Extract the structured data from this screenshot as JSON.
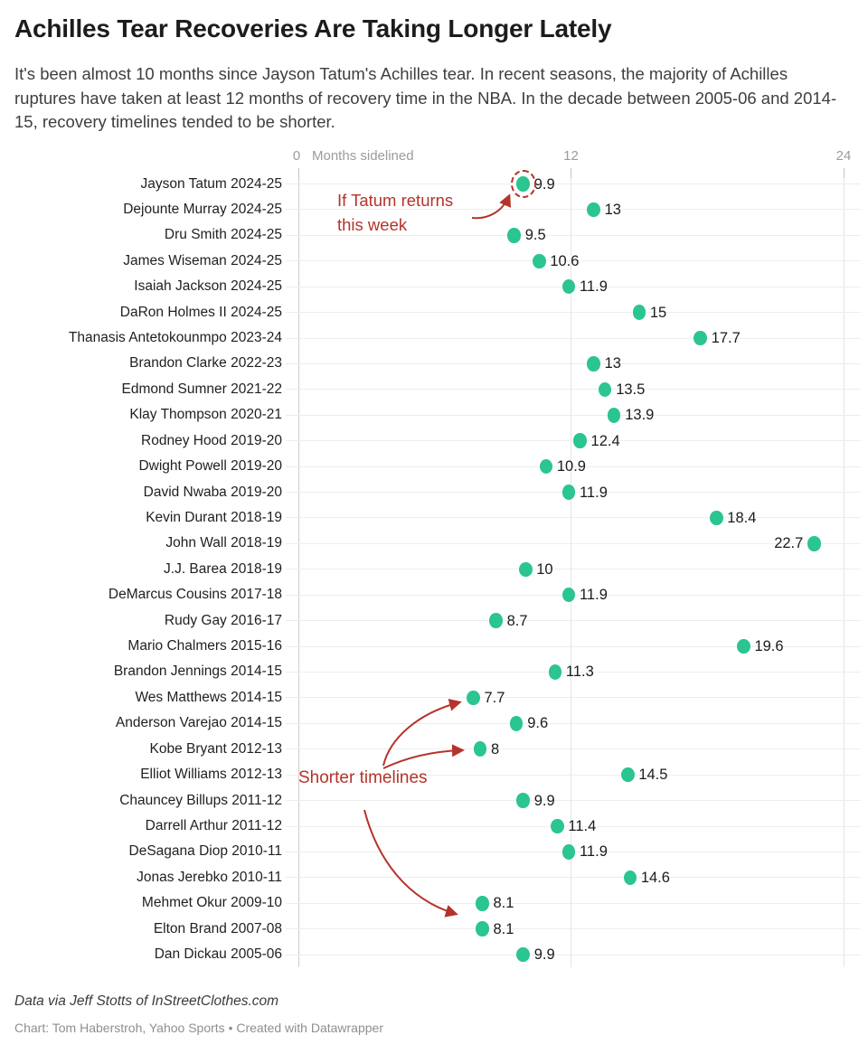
{
  "title": "Achilles Tear Recoveries Are Taking Longer Lately",
  "subtitle": "It's been almost 10 months since Jayson Tatum's Achilles tear. In recent seasons, the majority of Achilles ruptures have taken at least 12 months of recovery time in the NBA. In the decade between 2005-06 and 2014-15, recovery timelines tended to be shorter.",
  "colors": {
    "dot": "#2bc58f",
    "annotation": "#b5332b",
    "grid": "#e4e4e4",
    "text": "#1f1f1f",
    "axis_text": "#9b9b9b"
  },
  "annotations": {
    "tatum": {
      "line1": "If Tatum returns",
      "line2": "this week"
    },
    "shorter": {
      "text": "Shorter timelines"
    }
  },
  "footer": {
    "source": "Data via Jeff Stotts of InStreetClothes.com",
    "credit": "Chart: Tom Haberstroh, Yahoo Sports • Created with Datawrapper"
  },
  "chart_data": {
    "type": "scatter",
    "title": "Achilles Tear Recoveries Are Taking Longer Lately",
    "xlabel": "Months sidelined",
    "ylabel": "",
    "xlim": [
      0,
      24
    ],
    "xticks": [
      0,
      12,
      24
    ],
    "grid": true,
    "points": [
      {
        "category": "Jayson Tatum 2024-25",
        "value": 9.9,
        "dashed_circle": true
      },
      {
        "category": "Dejounte Murray 2024-25",
        "value": 13
      },
      {
        "category": "Dru Smith 2024-25",
        "value": 9.5
      },
      {
        "category": "James Wiseman 2024-25",
        "value": 10.6
      },
      {
        "category": "Isaiah Jackson 2024-25",
        "value": 11.9
      },
      {
        "category": "DaRon Holmes II 2024-25",
        "value": 15
      },
      {
        "category": "Thanasis Antetokounmpo 2023-24",
        "value": 17.7
      },
      {
        "category": "Brandon Clarke 2022-23",
        "value": 13
      },
      {
        "category": "Edmond Sumner 2021-22",
        "value": 13.5
      },
      {
        "category": "Klay Thompson 2020-21",
        "value": 13.9
      },
      {
        "category": "Rodney Hood 2019-20",
        "value": 12.4
      },
      {
        "category": "Dwight Powell 2019-20",
        "value": 10.9
      },
      {
        "category": "David Nwaba 2019-20",
        "value": 11.9
      },
      {
        "category": "Kevin Durant 2018-19",
        "value": 18.4
      },
      {
        "category": "John Wall 2018-19",
        "value": 22.7,
        "label_left": true
      },
      {
        "category": "J.J. Barea 2018-19",
        "value": 10
      },
      {
        "category": "DeMarcus Cousins 2017-18",
        "value": 11.9
      },
      {
        "category": "Rudy Gay 2016-17",
        "value": 8.7
      },
      {
        "category": "Mario Chalmers 2015-16",
        "value": 19.6
      },
      {
        "category": "Brandon Jennings 2014-15",
        "value": 11.3
      },
      {
        "category": "Wes Matthews 2014-15",
        "value": 7.7
      },
      {
        "category": "Anderson Varejao 2014-15",
        "value": 9.6
      },
      {
        "category": "Kobe Bryant 2012-13",
        "value": 8
      },
      {
        "category": "Elliot Williams 2012-13",
        "value": 14.5
      },
      {
        "category": "Chauncey Billups 2011-12",
        "value": 9.9
      },
      {
        "category": "Darrell Arthur 2011-12",
        "value": 11.4
      },
      {
        "category": "DeSagana Diop 2010-11",
        "value": 11.9
      },
      {
        "category": "Jonas Jerebko 2010-11",
        "value": 14.6
      },
      {
        "category": "Mehmet Okur 2009-10",
        "value": 8.1
      },
      {
        "category": "Elton Brand 2007-08",
        "value": 8.1
      },
      {
        "category": "Dan Dickau 2005-06",
        "value": 9.9
      }
    ]
  }
}
